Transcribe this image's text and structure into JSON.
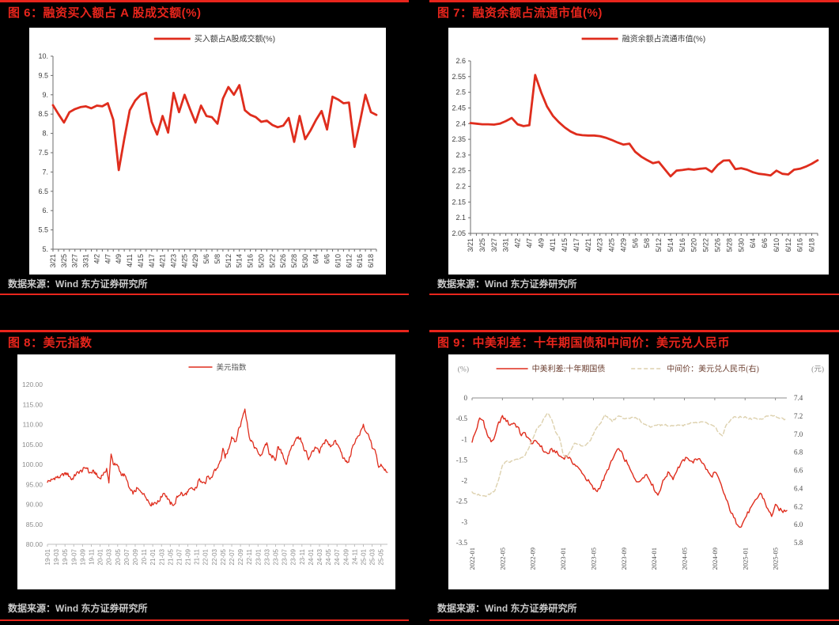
{
  "source_note": "数据来源：Wind 东方证券研究所",
  "colors": {
    "background": "#000000",
    "accent_red": "#e8251c",
    "line_red": "#df2d1d",
    "beige_dashed": "#ddd1ae",
    "panel_bg": "#ffffff",
    "source_text": "#c9c9c9"
  },
  "chart_data": [
    {
      "type": "line",
      "title": "图 6：融资买入额占 A 股成交额(%)",
      "legend": [
        {
          "label": "买入额占A股成交额(%)",
          "color": "#df2d1d",
          "dash": false
        }
      ],
      "x_labels": [
        "3/21",
        "3/25",
        "3/27",
        "3/31",
        "4/2",
        "4/7",
        "4/9",
        "4/11",
        "4/15",
        "4/17",
        "4/21",
        "4/23",
        "4/25",
        "4/29",
        "5/6",
        "5/8",
        "5/12",
        "5/14",
        "5/16",
        "5/20",
        "5/22",
        "5/26",
        "5/28",
        "5/30",
        "6/4",
        "6/6",
        "6/10",
        "6/12",
        "6/16",
        "6/18"
      ],
      "label_step": 2,
      "y_axis": {
        "min": 5,
        "max": 10,
        "tick_values": [
          10,
          9.5,
          9,
          8.5,
          8,
          7.5,
          7,
          6.5,
          6,
          5.5,
          5
        ],
        "tick_labels": [
          "10.",
          "9.5",
          "9.",
          "8.5",
          "8.",
          "7.5",
          "7.",
          "6.5",
          "6.",
          "5.5",
          "5."
        ]
      },
      "series": [
        {
          "name": "买入额占A股成交额(%)",
          "color": "#df2d1d",
          "axis": "left",
          "values": [
            8.73,
            8.5,
            8.28,
            8.55,
            8.63,
            8.68,
            8.7,
            8.65,
            8.72,
            8.7,
            8.78,
            8.35,
            7.05,
            7.85,
            8.6,
            8.85,
            9.0,
            9.05,
            8.3,
            7.97,
            8.45,
            8.02,
            9.05,
            8.55,
            9.0,
            8.63,
            8.28,
            8.72,
            8.45,
            8.42,
            8.25,
            8.9,
            9.2,
            9.0,
            9.25,
            8.6,
            8.48,
            8.42,
            8.3,
            8.33,
            8.22,
            8.16,
            8.2,
            8.4,
            7.78,
            8.45,
            7.85,
            8.08,
            8.35,
            8.58,
            8.1,
            8.95,
            8.88,
            8.78,
            8.8,
            7.65,
            8.3,
            9.0,
            8.55,
            8.48
          ]
        }
      ]
    },
    {
      "type": "line",
      "title": "图 7：融资余额占流通市值(%)",
      "legend": [
        {
          "label": "融资余额占流通市值(%)",
          "color": "#df2d1d",
          "dash": false
        }
      ],
      "x_labels": [
        "3/21",
        "3/25",
        "3/27",
        "3/31",
        "4/2",
        "4/7",
        "4/9",
        "4/11",
        "4/15",
        "4/17",
        "4/21",
        "4/23",
        "4/25",
        "4/29",
        "5/6",
        "5/8",
        "5/12",
        "5/14",
        "5/16",
        "5/20",
        "5/22",
        "5/26",
        "5/28",
        "5/30",
        "6/4",
        "6/6",
        "6/10",
        "6/12",
        "6/16",
        "6/18"
      ],
      "label_step": 2,
      "y_axis": {
        "min": 2.05,
        "max": 2.6,
        "tick_values": [
          2.6,
          2.55,
          2.5,
          2.45,
          2.4,
          2.35,
          2.3,
          2.25,
          2.2,
          2.15,
          2.1,
          2.05
        ],
        "tick_labels": [
          "2.6",
          "2.55",
          "2.5",
          "2.45",
          "2.4",
          "2.35",
          "2.3",
          "2.25",
          "2.2",
          "2.15",
          "2.1",
          "2.05"
        ]
      },
      "series": [
        {
          "name": "融资余额占流通市值(%)",
          "color": "#df2d1d",
          "axis": "left",
          "values": [
            2.402,
            2.4,
            2.398,
            2.398,
            2.397,
            2.4,
            2.408,
            2.418,
            2.398,
            2.392,
            2.395,
            2.555,
            2.5,
            2.455,
            2.425,
            2.405,
            2.388,
            2.375,
            2.366,
            2.363,
            2.362,
            2.362,
            2.36,
            2.355,
            2.348,
            2.34,
            2.333,
            2.336,
            2.31,
            2.295,
            2.284,
            2.274,
            2.278,
            2.255,
            2.232,
            2.25,
            2.252,
            2.255,
            2.253,
            2.256,
            2.258,
            2.246,
            2.268,
            2.282,
            2.283,
            2.255,
            2.258,
            2.253,
            2.245,
            2.24,
            2.238,
            2.235,
            2.25,
            2.24,
            2.238,
            2.253,
            2.256,
            2.263,
            2.272,
            2.283
          ]
        }
      ]
    },
    {
      "type": "line",
      "title": "图 8：美元指数",
      "legend": [
        {
          "label": "美元指数",
          "color": "#df2d1d",
          "dash": false
        }
      ],
      "x_labels": [
        "19-01",
        "19-03",
        "19-05",
        "19-07",
        "19-09",
        "19-11",
        "20-01",
        "20-03",
        "20-05",
        "20-07",
        "20-09",
        "20-11",
        "21-01",
        "21-03",
        "21-05",
        "21-07",
        "21-09",
        "21-11",
        "22-01",
        "22-03",
        "22-05",
        "22-07",
        "22-09",
        "22-11",
        "23-01",
        "23-03",
        "23-05",
        "23-07",
        "23-09",
        "23-11",
        "24-01",
        "24-03",
        "24-05",
        "24-07",
        "24-09",
        "24-11",
        "25-01",
        "25-03",
        "25-05"
      ],
      "label_step": 4,
      "y_axis": {
        "min": 80,
        "max": 120,
        "tick_values": [
          120,
          115,
          110,
          105,
          100,
          95,
          90,
          85,
          80
        ],
        "tick_labels": [
          "120.00",
          "115.00",
          "110.00",
          "105.00",
          "100.00",
          "95.00",
          "90.00",
          "85.00",
          "80.00"
        ]
      },
      "series": [
        {
          "name": "美元指数",
          "color": "#df2d1d",
          "axis": "left",
          "values": [
            95.7,
            95.9,
            96.1,
            96.5,
            96.8,
            96.7,
            97.0,
            97.5,
            97.7,
            97.6,
            97.1,
            96.2,
            96.8,
            97.6,
            98.0,
            98.3,
            98.5,
            99.1,
            99.2,
            97.9,
            97.9,
            98.3,
            97.7,
            96.8,
            96.5,
            97.4,
            97.8,
            99.0,
            95.2,
            102.8,
            100.2,
            99.8,
            99.7,
            98.3,
            97.3,
            97.4,
            96.5,
            94.4,
            93.4,
            92.8,
            93.3,
            94.0,
            93.4,
            93.1,
            92.5,
            91.8,
            90.8,
            89.9,
            90.1,
            90.5,
            90.4,
            90.9,
            91.9,
            93.0,
            92.1,
            91.3,
            90.2,
            90.0,
            89.9,
            91.8,
            92.3,
            92.9,
            92.1,
            92.7,
            93.0,
            93.8,
            94.0,
            93.5,
            94.3,
            96.1,
            96.0,
            95.7,
            95.2,
            97.2,
            96.0,
            96.7,
            98.5,
            98.8,
            99.8,
            101.0,
            103.8,
            101.8,
            102.9,
            104.7,
            106.9,
            106.4,
            105.5,
            108.8,
            109.7,
            112.1,
            113.9,
            110.7,
            106.7,
            106.0,
            104.7,
            103.9,
            103.1,
            101.9,
            103.0,
            104.6,
            105.4,
            102.6,
            102.1,
            101.7,
            101.2,
            104.2,
            103.6,
            102.9,
            101.3,
            99.8,
            102.5,
            104.1,
            104.9,
            106.2,
            106.6,
            106.5,
            105.7,
            103.4,
            103.2,
            101.3,
            102.4,
            103.4,
            104.1,
            103.9,
            102.8,
            104.5,
            105.2,
            106.3,
            105.1,
            104.6,
            105.0,
            105.9,
            105.0,
            104.2,
            102.9,
            101.4,
            100.8,
            100.4,
            102.0,
            104.1,
            105.4,
            106.7,
            107.0,
            108.4,
            109.9,
            108.0,
            107.6,
            106.4,
            104.2,
            103.8,
            102.2,
            99.2,
            100.1,
            99.3,
            98.7,
            98.2
          ]
        }
      ]
    },
    {
      "type": "line",
      "title": "图 9：中美利差：十年期国债和中间价：美元兑人民币",
      "legend": [
        {
          "label": "中美利差:十年期国债",
          "color": "#df2d1d",
          "dash": false
        },
        {
          "label": "中间价：美元兑人民币(右)",
          "color": "#ddd1ae",
          "dash": true
        }
      ],
      "x_labels": [
        "2022-01",
        "2022-05",
        "2022-09",
        "2023-01",
        "2023-05",
        "2023-09",
        "2024-01",
        "2024-05",
        "2024-09",
        "2025-01",
        "2025-05"
      ],
      "label_step": 8,
      "y_axis": {
        "min": -3.5,
        "max": 0,
        "unit": "(%)",
        "tick_values": [
          0,
          -0.5,
          -1,
          -1.5,
          -2,
          -2.5,
          -3,
          -3.5
        ],
        "tick_labels": [
          "0",
          "-0.5",
          "-1",
          "-1.5",
          "-2",
          "-2.5",
          "-3",
          "-3.5"
        ]
      },
      "y_axis_right": {
        "min": 5.8,
        "max": 7.4,
        "unit": "(元)",
        "tick_values": [
          7.4,
          7.2,
          7.0,
          6.8,
          6.6,
          6.4,
          6.2,
          6.0,
          5.8
        ],
        "tick_labels": [
          "7.4",
          "7.2",
          "7.0",
          "6.8",
          "6.6",
          "6.4",
          "6.2",
          "6.0",
          "5.8"
        ]
      },
      "series": [
        {
          "name": "中美利差:十年期国债",
          "color": "#df2d1d",
          "axis": "left",
          "values": [
            -1.05,
            -0.8,
            -0.5,
            -0.55,
            -0.9,
            -1.05,
            -0.95,
            -0.6,
            -0.45,
            -0.55,
            -0.65,
            -0.6,
            -0.7,
            -0.9,
            -0.85,
            -1.0,
            -1.1,
            -1.05,
            -1.15,
            -1.3,
            -1.35,
            -1.25,
            -1.3,
            -1.4,
            -1.45,
            -1.4,
            -1.5,
            -1.6,
            -1.7,
            -1.8,
            -1.95,
            -2.05,
            -2.2,
            -2.25,
            -2.1,
            -1.9,
            -1.7,
            -1.5,
            -1.3,
            -1.25,
            -1.45,
            -1.6,
            -1.8,
            -1.95,
            -2.05,
            -1.9,
            -1.85,
            -2.0,
            -2.2,
            -2.35,
            -2.1,
            -1.9,
            -1.8,
            -1.95,
            -1.75,
            -1.6,
            -1.5,
            -1.45,
            -1.55,
            -1.5,
            -1.45,
            -1.6,
            -1.75,
            -1.9,
            -1.8,
            -1.95,
            -2.2,
            -2.45,
            -2.7,
            -2.9,
            -3.05,
            -3.1,
            -2.9,
            -2.75,
            -2.6,
            -2.45,
            -2.3,
            -2.45,
            -2.7,
            -2.85,
            -2.6,
            -2.7,
            -2.75,
            -2.7
          ]
        },
        {
          "name": "中间价：美元兑人民币(右)",
          "color": "#ddd1ae",
          "axis": "right",
          "dash": true,
          "values": [
            6.36,
            6.34,
            6.33,
            6.32,
            6.32,
            6.35,
            6.37,
            6.5,
            6.65,
            6.7,
            6.69,
            6.71,
            6.72,
            6.74,
            6.77,
            6.85,
            6.95,
            7.05,
            7.1,
            7.18,
            7.23,
            7.16,
            7.02,
            6.97,
            6.78,
            6.75,
            6.82,
            6.9,
            6.89,
            6.87,
            6.88,
            6.92,
            7.0,
            7.08,
            7.13,
            7.22,
            7.17,
            7.14,
            7.18,
            7.2,
            7.17,
            7.17,
            7.18,
            7.18,
            7.17,
            7.12,
            7.1,
            7.08,
            7.1,
            7.11,
            7.1,
            7.11,
            7.09,
            7.09,
            7.1,
            7.1,
            7.1,
            7.11,
            7.12,
            7.13,
            7.13,
            7.13,
            7.12,
            7.1,
            7.08,
            7.02,
            6.98,
            7.1,
            7.15,
            7.19,
            7.19,
            7.19,
            7.19,
            7.17,
            7.17,
            7.17,
            7.17,
            7.18,
            7.2,
            7.21,
            7.2,
            7.18,
            7.17,
            7.16
          ]
        }
      ]
    }
  ]
}
